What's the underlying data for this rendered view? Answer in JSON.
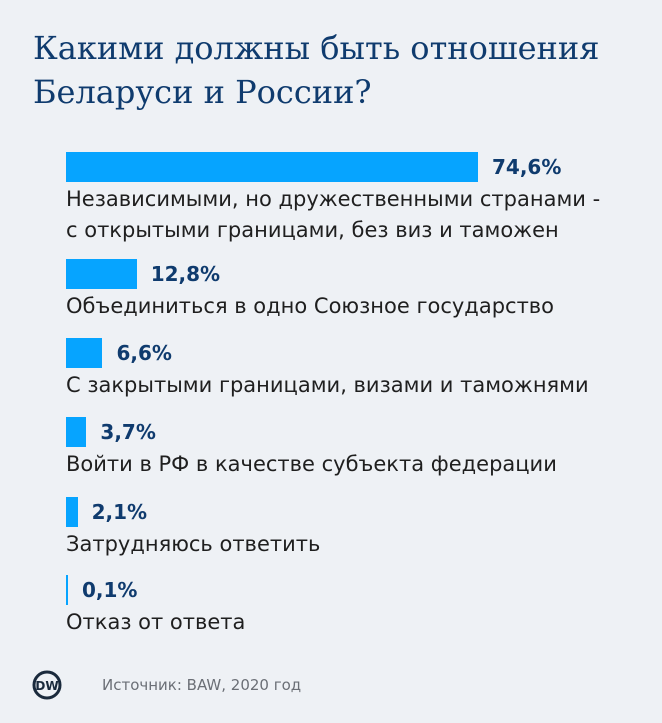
{
  "title_lines": [
    "Какими должны быть отношения",
    "Беларуси и России?"
  ],
  "accent_color": "#06a4ff",
  "title_color": "#0f3b6e",
  "chart_data": {
    "type": "bar",
    "orientation": "horizontal",
    "title": "Какими должны быть отношения Беларуси и России?",
    "unit": "%",
    "xlim": [
      0,
      100
    ],
    "categories": [
      "Независимыми, но дружественными странами - с открытыми границами, без виз и таможен",
      "Объединиться в одно Союзное государство",
      "С закрытыми границами, визами и таможнями",
      "Войти в РФ в качестве субъекта федерации",
      "Затрудняюсь ответить",
      "Отказ от ответа"
    ],
    "values": [
      74.6,
      12.8,
      6.6,
      3.7,
      2.1,
      0.1
    ],
    "value_labels": [
      "74,6%",
      "12,8%",
      "6,6%",
      "3,7%",
      "2,1%",
      "0,1%"
    ],
    "label_lines": [
      [
        "Независимыми, но дружественными странами -",
        "с открытыми границами, без виз и таможен"
      ],
      [
        "Объединиться в одно Союзное государство"
      ],
      [
        "С закрытыми границами, визами и таможнями"
      ],
      [
        "Войти в РФ в качестве субъекта федерации"
      ],
      [
        "Затрудняюсь ответить"
      ],
      [
        "Отказ от ответа"
      ]
    ]
  },
  "footer": {
    "logo_text": "DW",
    "source": "Источник: BAW, 2020 год"
  }
}
